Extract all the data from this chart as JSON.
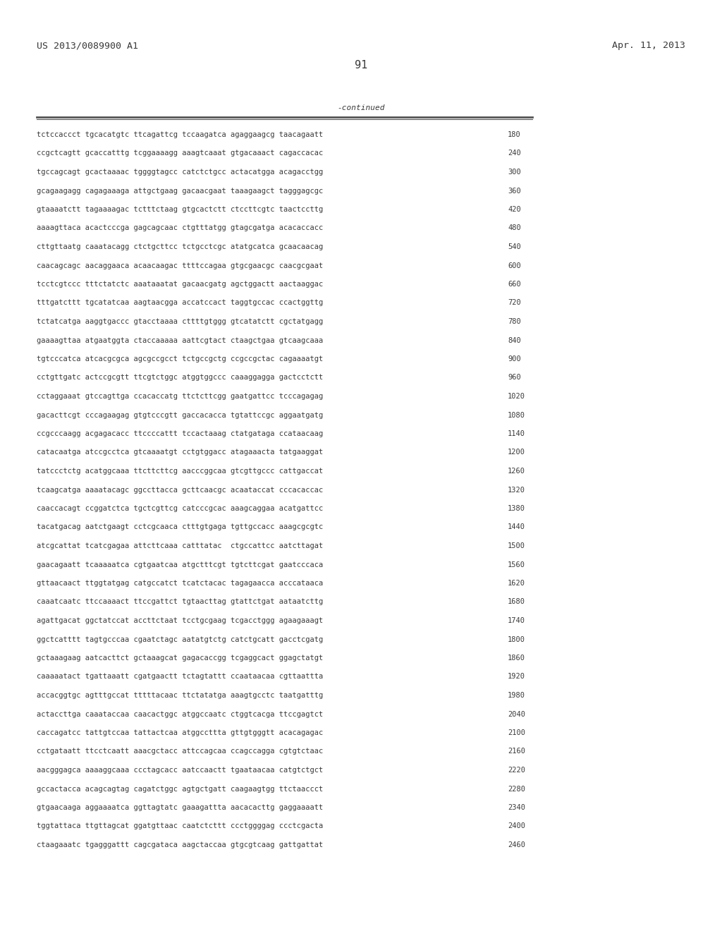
{
  "header_left": "US 2013/0089900 A1",
  "header_right": "Apr. 11, 2013",
  "page_number": "91",
  "continued_label": "-continued",
  "background_color": "#ffffff",
  "text_color": "#3a3a3a",
  "font_size": 7.5,
  "header_font_size": 9.5,
  "page_num_font_size": 11,
  "sequence_lines": [
    [
      "tctccaccct tgcacatgtc ttcagattcg tccaagatca agaggaagcg taacagaatt",
      "180"
    ],
    [
      "ccgctcagtt gcaccatttg tcggaaaagg aaagtcaaat gtgacaaact cagaccacac",
      "240"
    ],
    [
      "tgccagcagt gcactaaaac tggggtagcc catctctgcc actacatgga acagacctgg",
      "300"
    ],
    [
      "gcagaagagg cagagaaaga attgctgaag gacaacgaat taaagaagct tagggagcgc",
      "360"
    ],
    [
      "gtaaaatctt tagaaaagac tctttctaag gtgcactctt ctccttcgtc taactccttg",
      "420"
    ],
    [
      "aaaagttaca acactcccga gagcagcaac ctgtttatgg gtagcgatga acacaccacc",
      "480"
    ],
    [
      "cttgttaatg caaatacagg ctctgcttcc tctgcctcgc atatgcatca gcaacaacag",
      "540"
    ],
    [
      "caacagcagc aacaggaaca acaacaagac ttttccagaa gtgcgaacgc caacgcgaat",
      "600"
    ],
    [
      "tcctcgtccc tttctatctc aaataaatat gacaacgatg agctggactt aactaaggac",
      "660"
    ],
    [
      "tttgatcttt tgcatatcaa aagtaacgga accatccact taggtgccac ccactggttg",
      "720"
    ],
    [
      "tctatcatga aaggtgaccc gtacctaaaa cttttgtggg gtcatatctt cgctatgagg",
      "780"
    ],
    [
      "gaaaagttaa atgaatggta ctaccaaaaa aattcgtact ctaagctgaa gtcaagcaaa",
      "840"
    ],
    [
      "tgtcccatca atcacgcgca agcgccgcct tctgccgctg ccgccgctac cagaaaatgt",
      "900"
    ],
    [
      "cctgttgatc actccgcgtt ttcgtctggc atggtggccc caaaggagga gactcctctt",
      "960"
    ],
    [
      "cctaggaaat gtccagttga ccacaccatg ttctcttcgg gaatgattcc tcccagagag",
      "1020"
    ],
    [
      "gacacttcgt cccagaagag gtgtcccgtt gaccacacca tgtattccgc aggaatgatg",
      "1080"
    ],
    [
      "ccgcccaagg acgagacacc ttccccattt tccactaaag ctatgataga ccataacaag",
      "1140"
    ],
    [
      "catacaatga atccgcctca gtcaaaatgt cctgtggacc atagaaacta tatgaaggat",
      "1200"
    ],
    [
      "tatccctctg acatggcaaa ttcttcttcg aacccggcaa gtcgttgccc cattgaccat",
      "1260"
    ],
    [
      "tcaagcatga aaaatacagc ggccttacca gcttcaacgc acaataccat cccacaccac",
      "1320"
    ],
    [
      "caaccacagt ccggatctca tgctcgttcg catcccgcac aaagcaggaa acatgattcc",
      "1380"
    ],
    [
      "tacatgacag aatctgaagt cctcgcaaca ctttgtgaga tgttgccacc aaagcgcgtc",
      "1440"
    ],
    [
      "atcgcattat tcatcgagaa attcttcaaa catttatac  ctgccattcc aatcttagat",
      "1500"
    ],
    [
      "gaacagaatt tcaaaaatca cgtgaatcaa atgctttcgt tgtcttcgat gaatcccaca",
      "1560"
    ],
    [
      "gttaacaact ttggtatgag catgccatct tcatctacac tagagaacca acccataaca",
      "1620"
    ],
    [
      "caaatcaatc ttccaaaact ttccgattct tgtaacttag gtattctgat aataatcttg",
      "1680"
    ],
    [
      "agattgacat ggctatccat accttctaat tcctgcgaag tcgacctggg agaagaaagt",
      "1740"
    ],
    [
      "ggctcatttt tagtgcccaa cgaatctagc aatatgtctg catctgcatt gacctcgatg",
      "1800"
    ],
    [
      "gctaaagaag aatcacttct gctaaagcat gagacaccgg tcgaggcact ggagctatgt",
      "1860"
    ],
    [
      "caaaaatact tgattaaatt cgatgaactt tctagtattt ccaataacaa cgttaattta",
      "1920"
    ],
    [
      "accacggtgc agtttgccat tttttacaac ttctatatga aaagtgcctc taatgatttg",
      "1980"
    ],
    [
      "actaccttga caaataccaa caacactggc atggccaatc ctggtcacga ttccgagtct",
      "2040"
    ],
    [
      "caccagatcc tattgtccaa tattactcaa atggccttta gttgtgggtt acacagagac",
      "2100"
    ],
    [
      "cctgataatt ttcctcaatt aaacgctacc attccagcaa ccagccagga cgtgtctaac",
      "2160"
    ],
    [
      "aacgggagca aaaaggcaaa ccctagcacc aatccaactt tgaataacaa catgtctgct",
      "2220"
    ],
    [
      "gccactacca acagcagtag cagatctggc agtgctgatt caagaagtgg ttctaaccct",
      "2280"
    ],
    [
      "gtgaacaaga aggaaaatca ggttagtatc gaaagattta aacacacttg gaggaaaatt",
      "2340"
    ],
    [
      "tggtattaca ttgttagcat ggatgttaac caatctcttt ccctggggag ccctcgacta",
      "2400"
    ],
    [
      "ctaagaaatc tgagggattt cagcgataca aagctaccaa gtgcgtcaag gattgattat",
      "2460"
    ]
  ]
}
